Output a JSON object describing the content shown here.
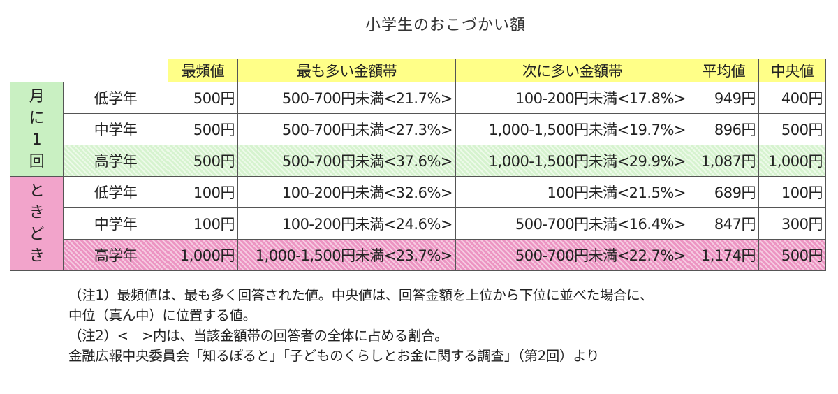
{
  "title": "小学生のおこづかい額",
  "table": {
    "headers": [
      "最頻値",
      "最も多い金額帯",
      "次に多い金額帯",
      "平均値",
      "中央値"
    ],
    "groups": [
      {
        "label": [
          "月",
          "に",
          "1",
          "回"
        ],
        "rows": [
          {
            "grade": "低学年",
            "mode": "500円",
            "band1": "500-700円未満<21.7%>",
            "band2": "100-200円未満<17.8%>",
            "mean": "949円",
            "median": "400円"
          },
          {
            "grade": "中学年",
            "mode": "500円",
            "band1": "500-700円未満<27.3%>",
            "band2": "1,000-1,500円未満<19.7%>",
            "mean": "896円",
            "median": "500円"
          },
          {
            "grade": "高学年",
            "mode": "500円",
            "band1": "500-700円未満<37.6%>",
            "band2": "1,000-1,500円未満<29.9%>",
            "mean": "1,087円",
            "median": "1,000円"
          }
        ]
      },
      {
        "label": [
          "と",
          "き",
          "ど",
          "き"
        ],
        "rows": [
          {
            "grade": "低学年",
            "mode": "100円",
            "band1": "100-200円未満<32.6%>",
            "band2": "100円未満<21.5%>",
            "mean": "689円",
            "median": "100円"
          },
          {
            "grade": "中学年",
            "mode": "100円",
            "band1": "100-200円未満<24.6%>",
            "band2": "500-700円未満<16.4%>",
            "mean": "847円",
            "median": "300円"
          },
          {
            "grade": "高学年",
            "mode": "1,000円",
            "band1": "1,000-1,500円未満<23.7%>",
            "band2": "500-700円未満<22.7%>",
            "mean": "1,174円",
            "median": "500円"
          }
        ]
      }
    ]
  },
  "notes": [
    "（注1）最頻値は、最も多く回答された値。中央値は、回答金額を上位から下位に並べた場合に、",
    "中位（真ん中）に位置する値。",
    "（注2）<　>内は、当該金額帯の回答者の全体に占める割合。",
    "金融広報中央委員会「知るぽると」「子どものくらしとお金に関する調査」（第2回）より"
  ],
  "colors": {
    "header_yellow": "#ffff88",
    "group_green": "#c9f0c2",
    "group_pink": "#f2a4cb",
    "highlight_green": "#d6f3cf",
    "highlight_pink": "#ec94c2"
  }
}
